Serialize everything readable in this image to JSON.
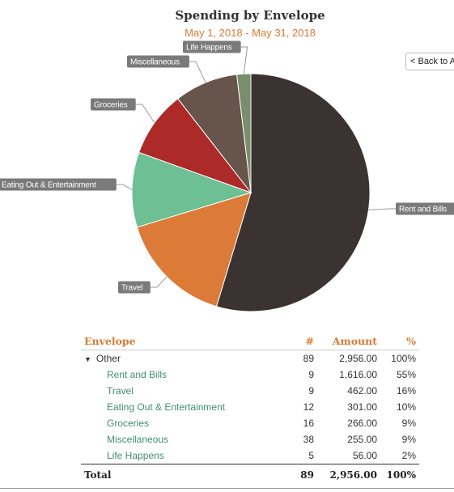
{
  "title": "Spending by Envelope",
  "subtitle": "May 1, 2018 - May 31, 2018",
  "back_button_label": "< Back to All",
  "chart_data": {
    "type": "pie",
    "title": "Spending by Envelope",
    "subtitle": "May 1, 2018 - May 31, 2018",
    "slices": [
      {
        "label": "Rent and Bills",
        "value": 1616.0,
        "color": "#3a3331"
      },
      {
        "label": "Travel",
        "value": 462.0,
        "color": "#dc7b38"
      },
      {
        "label": "Eating Out & Entertainment",
        "value": 301.0,
        "color": "#6dbf94"
      },
      {
        "label": "Groceries",
        "value": 266.0,
        "color": "#ac2a27"
      },
      {
        "label": "Miscellaneous",
        "value": 255.0,
        "color": "#67544a"
      },
      {
        "label": "Life Happens",
        "value": 56.0,
        "color": "#7a8e6e"
      }
    ],
    "label_bg_color": "#7a7a7a"
  },
  "table": {
    "headers": {
      "envelope": "Envelope",
      "count": "#",
      "amount": "Amount",
      "percent": "%"
    },
    "group": {
      "name": "Other",
      "count": "89",
      "amount": "2,956.00",
      "percent": "100%"
    },
    "rows": [
      {
        "name": "Rent and Bills",
        "count": "9",
        "amount": "1,616.00",
        "percent": "55%"
      },
      {
        "name": "Travel",
        "count": "9",
        "amount": "462.00",
        "percent": "16%"
      },
      {
        "name": "Eating Out & Entertainment",
        "count": "12",
        "amount": "301.00",
        "percent": "10%"
      },
      {
        "name": "Groceries",
        "count": "16",
        "amount": "266.00",
        "percent": "9%"
      },
      {
        "name": "Miscellaneous",
        "count": "38",
        "amount": "255.00",
        "percent": "9%"
      },
      {
        "name": "Life Happens",
        "count": "5",
        "amount": "56.00",
        "percent": "2%"
      }
    ],
    "total": {
      "label": "Total",
      "count": "89",
      "amount": "2,956.00",
      "percent": "100%"
    }
  }
}
